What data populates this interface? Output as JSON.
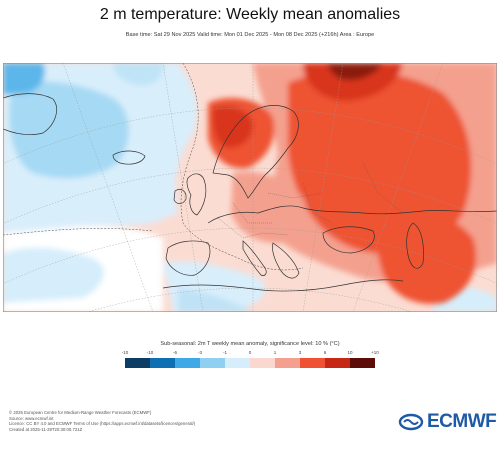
{
  "title": "2 m temperature: Weekly mean anomalies",
  "subtitle": "Base time: Sat 29 Nov 2025 Valid time: Mon 01 Dec 2025 - Mon 08 Dec 2025 (+216h) Area : Europe",
  "legend": {
    "title": "Sub-seasonal: 2m T weekly mean anomaly, significance level: 10 % (°C)",
    "ticks": [
      "-10",
      "-10",
      "-6",
      "-3",
      "-1",
      "0",
      "1",
      "3",
      "6",
      "10",
      "+10"
    ],
    "colors": [
      "#0c3d64",
      "#0f6fb3",
      "#3fa8e6",
      "#8fd0f2",
      "#d6eefb",
      "#fbd8cf",
      "#f4a08e",
      "#ee5233",
      "#c62815",
      "#5e0c08"
    ]
  },
  "footer": {
    "lines": [
      "© 2025 European Centre for Medium-Range Weather Forecasts (ECMWF)",
      "Source: www.ecmwf.int",
      "Licence: CC BY 4.0 and ECMWF Terms of Use (https://apps.ecmwf.int/datasets/licences/general/)",
      "Created at 2025-11-29T20:30:00.721Z"
    ]
  },
  "logo": {
    "text": "ECMWF",
    "icon": "ecmwf-logo-icon"
  }
}
